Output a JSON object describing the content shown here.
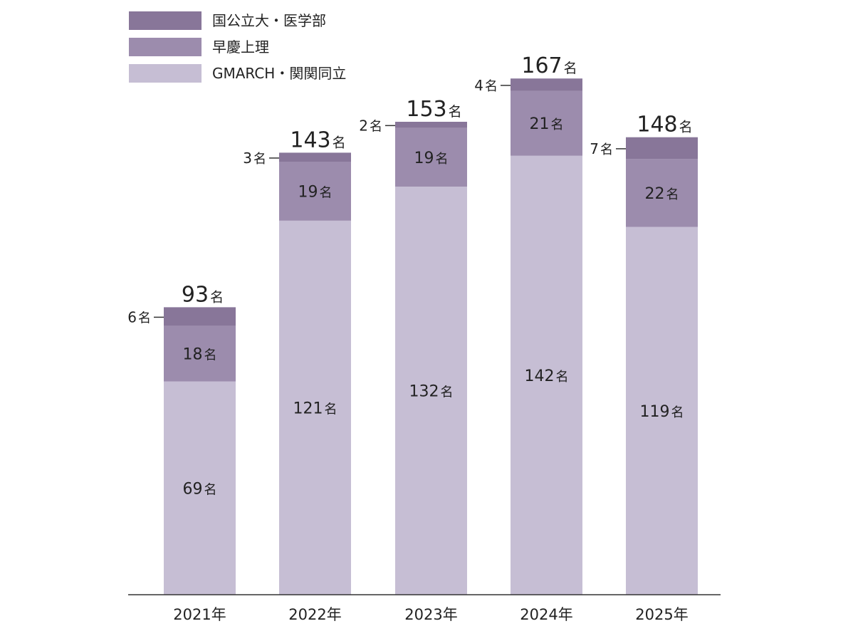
{
  "chart_data": {
    "type": "bar",
    "stacked": true,
    "title": "",
    "xlabel": "",
    "ylabel": "",
    "legend_position": "top-left",
    "grid": false,
    "unit": "名",
    "categories": [
      "2021年",
      "2022年",
      "2023年",
      "2024年",
      "2025年"
    ],
    "series": [
      {
        "name": "GMARCH・関関同立",
        "color": "#c6bed4",
        "values": [
          69,
          121,
          132,
          142,
          119
        ]
      },
      {
        "name": "早慶上理",
        "color": "#9c8cad",
        "values": [
          18,
          19,
          19,
          21,
          22
        ]
      },
      {
        "name": "国公立大・医学部",
        "color": "#887699",
        "values": [
          6,
          3,
          2,
          4,
          7
        ]
      }
    ],
    "totals": [
      93,
      143,
      153,
      167,
      148
    ]
  }
}
